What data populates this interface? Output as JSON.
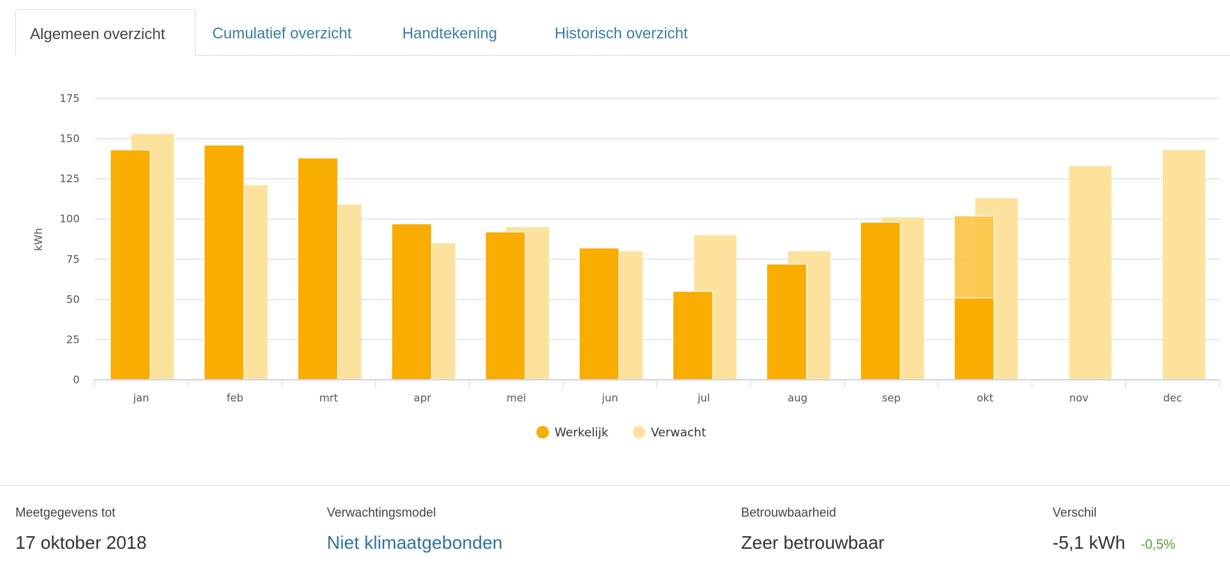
{
  "tabs": [
    "Algemeen overzicht",
    "Cumulatief overzicht",
    "Handtekening",
    "Historisch overzicht"
  ],
  "chart_data": {
    "type": "bar",
    "ylabel": "kWh",
    "ylim": [
      0,
      175
    ],
    "yticks": [
      0,
      25,
      50,
      75,
      100,
      125,
      150,
      175
    ],
    "categories": [
      "jan",
      "feb",
      "mrt",
      "apr",
      "mei",
      "jun",
      "jul",
      "aug",
      "sep",
      "okt",
      "nov",
      "dec"
    ],
    "series": [
      {
        "name": "Werkelijk",
        "color": "#f9ad00",
        "values": [
          143,
          146,
          138,
          97,
          92,
          82,
          55,
          72,
          98,
          51,
          null,
          null
        ]
      },
      {
        "name": "Verwacht",
        "color": "#fde29e",
        "values": [
          153,
          121,
          109,
          85,
          95,
          80,
          90,
          80,
          101,
          113,
          133,
          143
        ]
      }
    ],
    "projection": {
      "category": "okt",
      "value": 102,
      "color": "#fbc445"
    },
    "legend": "bottom-center",
    "grid": true
  },
  "footer": {
    "meet_label": "Meetgegevens tot",
    "meet_value": "17 oktober 2018",
    "model_label": "Verwachtingsmodel",
    "model_value": "Niet klimaatgebonden",
    "betr_label": "Betrouwbaarheid",
    "betr_value": "Zeer betrouwbaar",
    "versch_label": "Verschil",
    "versch_value": "-5,1 kWh",
    "versch_pct": "-0,5%"
  }
}
